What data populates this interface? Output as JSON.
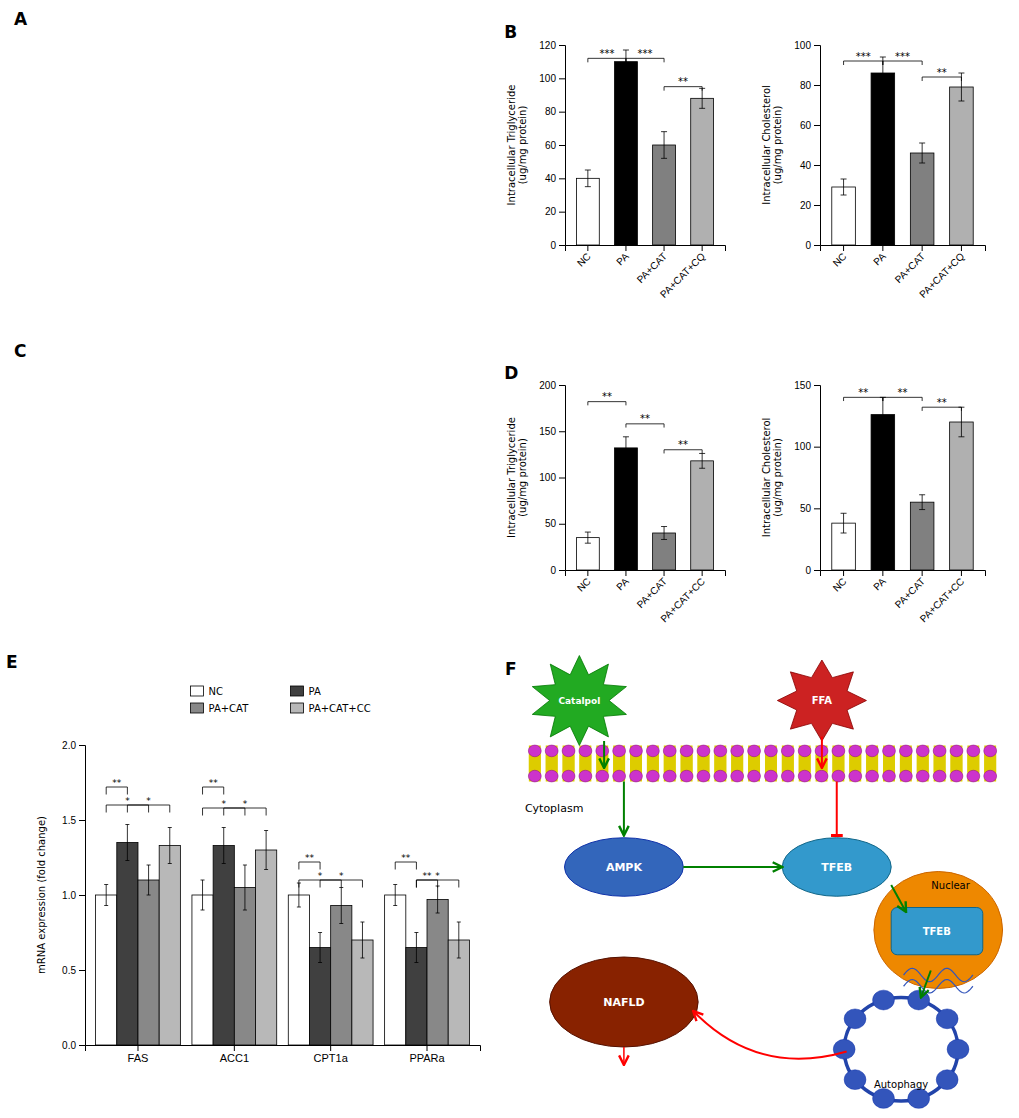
{
  "chart_data": [
    {
      "type": "placeholder",
      "title": "A"
    },
    {
      "type": "bar",
      "title": "B",
      "categories": [
        "NC",
        "PA",
        "PA+CAT",
        "PA+CAT+CQ"
      ],
      "values": [
        40,
        110,
        60,
        88
      ],
      "errors": [
        5,
        7,
        8,
        6
      ],
      "colors": [
        "white",
        "black",
        "#808080",
        "#b0b0b0"
      ],
      "ylabel": "Intracellular Triglyceride\n(ug/mg protein)",
      "ylim": [
        0,
        120
      ],
      "yticks": [
        0,
        20,
        40,
        60,
        80,
        100,
        120
      ],
      "annotations": [
        {
          "text": "***",
          "x": [
            "NC",
            "PA"
          ],
          "y": 112
        },
        {
          "text": "***",
          "x": [
            "PA",
            "PA+CAT"
          ],
          "y": 112
        },
        {
          "text": "**",
          "x": [
            "PA+CAT",
            "PA+CAT+CQ"
          ],
          "y": 95
        }
      ]
    },
    {
      "type": "bar",
      "categories": [
        "NC",
        "PA",
        "PA+CAT",
        "PA+CAT+CQ"
      ],
      "values": [
        29,
        86,
        46,
        79
      ],
      "errors": [
        4,
        8,
        5,
        7
      ],
      "colors": [
        "white",
        "black",
        "#808080",
        "#b0b0b0"
      ],
      "ylabel": "Intracellular Cholesterol\n(ug/mg protein)",
      "ylim": [
        0,
        100
      ],
      "yticks": [
        0,
        20,
        40,
        60,
        80,
        100
      ],
      "annotations": [
        {
          "text": "***",
          "x": [
            "NC",
            "PA"
          ],
          "y": 92
        },
        {
          "text": "***",
          "x": [
            "PA",
            "PA+CAT"
          ],
          "y": 92
        },
        {
          "text": "**",
          "x": [
            "PA+CAT",
            "PA+CAT+CQ"
          ],
          "y": 84
        }
      ]
    },
    {
      "type": "placeholder",
      "title": "C"
    },
    {
      "type": "bar",
      "title": "D",
      "categories": [
        "NC",
        "PA",
        "PA+CAT",
        "PA+CAT+CC"
      ],
      "values": [
        35,
        132,
        40,
        118
      ],
      "errors": [
        6,
        12,
        7,
        8
      ],
      "colors": [
        "white",
        "black",
        "#808080",
        "#b0b0b0"
      ],
      "ylabel": "Intracellular Triglyceride\n(ug/mg protein)",
      "ylim": [
        0,
        200
      ],
      "yticks": [
        0,
        50,
        100,
        150,
        200
      ],
      "annotations": [
        {
          "text": "**",
          "x": [
            "NC",
            "PA"
          ],
          "y": 182
        },
        {
          "text": "**",
          "x": [
            "PA",
            "PA+CAT"
          ],
          "y": 158
        },
        {
          "text": "**",
          "x": [
            "PA+CAT",
            "PA+CAT+CC"
          ],
          "y": 130
        }
      ]
    },
    {
      "type": "bar",
      "categories": [
        "NC",
        "PA",
        "PA+CAT",
        "PA+CAT+CC"
      ],
      "values": [
        38,
        126,
        55,
        120
      ],
      "errors": [
        8,
        14,
        6,
        12
      ],
      "colors": [
        "white",
        "black",
        "#808080",
        "#b0b0b0"
      ],
      "ylabel": "Intracellular Cholesterol\n(ug/mg protein)",
      "ylim": [
        0,
        150
      ],
      "yticks": [
        0,
        50,
        100,
        150
      ],
      "annotations": [
        {
          "text": "**",
          "x": [
            "NC",
            "PA"
          ],
          "y": 140
        },
        {
          "text": "**",
          "x": [
            "PA",
            "PA+CAT"
          ],
          "y": 140
        },
        {
          "text": "**",
          "x": [
            "PA+CAT",
            "PA+CAT+CC"
          ],
          "y": 132
        }
      ]
    },
    {
      "type": "bar",
      "title": "E",
      "categories": [
        "FAS",
        "ACC1",
        "CPT1a",
        "PPARa"
      ],
      "series": [
        {
          "name": "NC",
          "color": "white",
          "values": [
            1.0,
            1.0,
            1.0,
            1.0
          ],
          "errors": [
            0.07,
            0.1,
            0.08,
            0.07
          ]
        },
        {
          "name": "PA",
          "color": "#404040",
          "values": [
            1.35,
            1.33,
            0.65,
            0.65
          ],
          "errors": [
            0.12,
            0.12,
            0.1,
            0.1
          ]
        },
        {
          "name": "PA+CAT",
          "color": "#888888",
          "values": [
            1.1,
            1.05,
            0.93,
            0.97
          ],
          "errors": [
            0.1,
            0.15,
            0.12,
            0.09
          ]
        },
        {
          "name": "PA+CAT+CC",
          "color": "#b8b8b8",
          "values": [
            1.33,
            1.3,
            0.7,
            0.7
          ],
          "errors": [
            0.12,
            0.13,
            0.12,
            0.12
          ]
        }
      ],
      "ylabel": "mRNA expression (fold change)",
      "ylim": [
        0,
        2.0
      ],
      "yticks": [
        {
          "value": 0.0,
          "label": "0.0"
        },
        0.5,
        {
          "value": 1.0,
          "label": "1.0"
        },
        1.5,
        {
          "value": 2.0,
          "label": "2.0"
        }
      ],
      "legend": "top",
      "annotations": [
        {
          "text": "**",
          "category": "FAS",
          "x": [
            "NC",
            "PA"
          ],
          "y": 1.72
        },
        {
          "text": "*",
          "category": "FAS",
          "x": [
            "NC",
            "PA+CAT"
          ],
          "y": 1.6
        },
        {
          "text": "*",
          "category": "FAS",
          "x": [
            "PA",
            "PA+CAT+CC"
          ],
          "y": 1.6
        },
        {
          "text": "**",
          "category": "ACC1",
          "x": [
            "NC",
            "PA"
          ],
          "y": 1.72
        },
        {
          "text": "*",
          "category": "ACC1",
          "x": [
            "NC",
            "PA+CAT"
          ],
          "y": 1.58
        },
        {
          "text": "*",
          "category": "ACC1",
          "x": [
            "PA",
            "PA+CAT+CC"
          ],
          "y": 1.58
        },
        {
          "text": "**",
          "category": "CPT1a",
          "x": [
            "NC",
            "PA"
          ],
          "y": 1.22
        },
        {
          "text": "*",
          "category": "CPT1a",
          "x": [
            "NC",
            "PA+CAT"
          ],
          "y": 1.1
        },
        {
          "text": "*",
          "category": "CPT1a",
          "x": [
            "PA",
            "PA+CAT+CC"
          ],
          "y": 1.1
        },
        {
          "text": "**",
          "category": "PPARa",
          "x": [
            "NC",
            "PA"
          ],
          "y": 1.22
        },
        {
          "text": "**",
          "category": "PPARa",
          "x": [
            "PA",
            "PA+CAT"
          ],
          "y": 1.1
        },
        {
          "text": "*",
          "category": "PPARa",
          "x": [
            "PA",
            "PA+CAT+CC"
          ],
          "y": 1.1
        }
      ]
    },
    {
      "type": "diagram",
      "title": "F",
      "annotations": [
        "Catalpol",
        "FFA",
        "Cytoplasm",
        "AMPK",
        "TFEB",
        "Nuclear",
        "TFEB",
        "NAFLD",
        "Autophagy"
      ]
    }
  ]
}
